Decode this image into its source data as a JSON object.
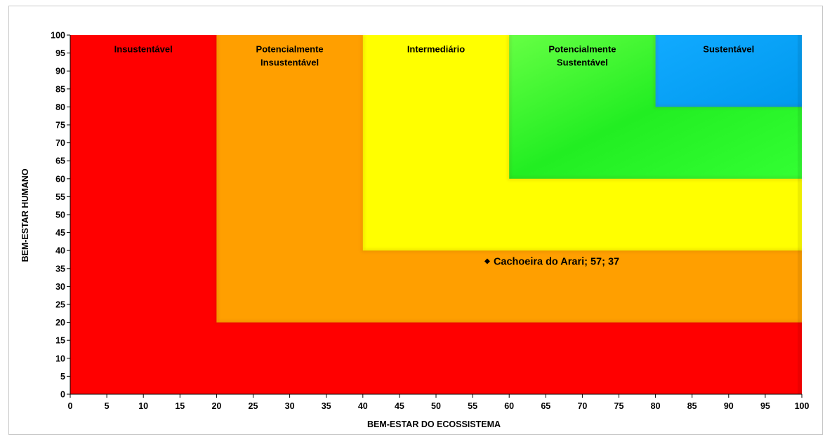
{
  "chart_data": {
    "type": "scatter",
    "xlabel": "BEM-ESTAR DO ECOSSISTEMA",
    "ylabel": "BEM-ESTAR HUMANO",
    "xlim": [
      0,
      100
    ],
    "ylim": [
      0,
      100
    ],
    "xticks": [
      0,
      5,
      10,
      15,
      20,
      25,
      30,
      35,
      40,
      45,
      50,
      55,
      60,
      65,
      70,
      75,
      80,
      85,
      90,
      95,
      100
    ],
    "yticks": [
      0,
      5,
      10,
      15,
      20,
      25,
      30,
      35,
      40,
      45,
      50,
      55,
      60,
      65,
      70,
      75,
      80,
      85,
      90,
      95,
      100
    ],
    "grid": false,
    "zones": [
      {
        "label": "Insustentável",
        "from": 0,
        "to": 20,
        "color": "#ff0000"
      },
      {
        "label": "Potencialmente Insustentável",
        "from": 20,
        "to": 40,
        "color": "#ff9f00"
      },
      {
        "label": "Intermediário",
        "from": 40,
        "to": 60,
        "color": "#ffff00"
      },
      {
        "label": "Potencialmente Sustentável",
        "from": 60,
        "to": 80,
        "color": "#33ff33"
      },
      {
        "label": "Sustentável",
        "from": 80,
        "to": 100,
        "color": "#00aaff"
      }
    ],
    "points": [
      {
        "label": "Cachoeira do Arari; 57; 37",
        "x": 57,
        "y": 37,
        "color": "#000000"
      }
    ]
  }
}
